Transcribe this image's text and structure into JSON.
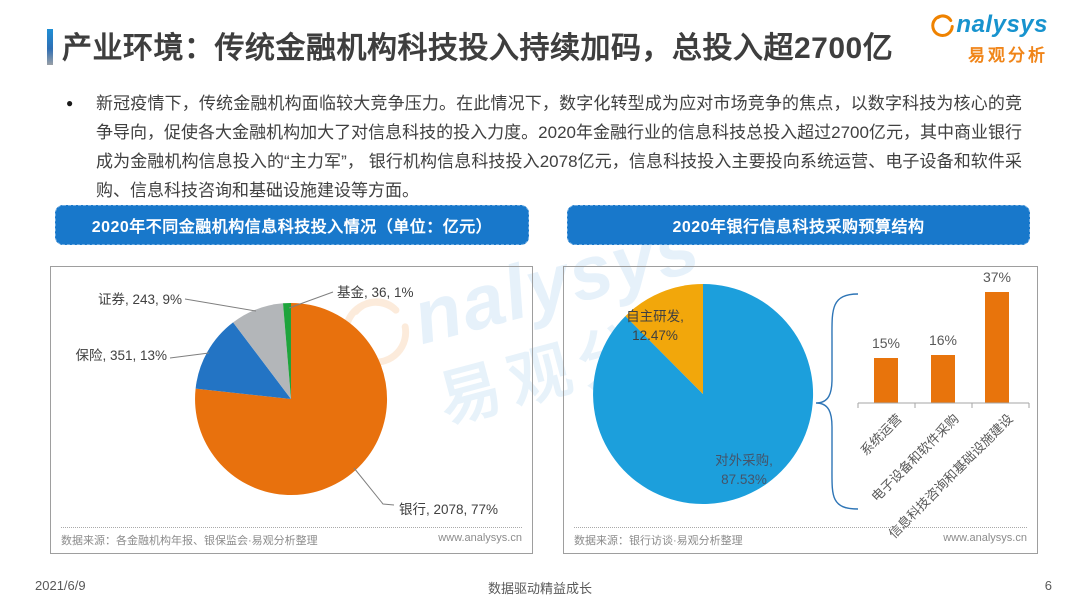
{
  "header": {
    "title": "产业环境：传统金融机构科技投入持续加码，总投入超2700亿",
    "logo_wordmark": "nalysys",
    "logo_cn": "易观分析"
  },
  "bullet": {
    "marker": "●",
    "text": "新冠疫情下，传统金融机构面临较大竞争压力。在此情况下，数字化转型成为应对市场竞争的焦点，以数字科技为核心的竞争导向，促使各大金融机构加大了对信息科技的投入力度。2020年金融行业的信息科技总投入超过2700亿元，其中商业银行成为金融机构信息投入的“主力军”， 银行机构信息科技投入2078亿元，信息科技投入主要投向系统运营、电子设备和软件采购、信息科技咨询和基础设施建设等方面。"
  },
  "left_panel": {
    "banner": "2020年不同金融机构信息科技投入情况（单位：亿元）",
    "callouts": {
      "securities": "证券, 243, 9%",
      "fund": "基金, 36, 1%",
      "insurance": "保险, 351, 13%",
      "bank": "银行, 2078, 77%"
    },
    "source": "数据来源：各金融机构年报、银保监会·易观分析整理",
    "site": "www.analysys.cn"
  },
  "right_panel": {
    "banner": "2020年银行信息科技采购预算结构",
    "pie_labels": {
      "inhouse_name": "自主研发,",
      "inhouse_value": "12.47%",
      "outsourced_name": "对外采购,",
      "outsourced_value": "87.53%"
    },
    "source": "数据来源：银行访谈·易观分析整理",
    "site": "www.analysys.cn"
  },
  "footer": {
    "date": "2021/6/9",
    "slogan": "数据驱动精益成长",
    "page": "6"
  },
  "watermark": {
    "wordmark": "nalysys",
    "cn": "易观分析"
  },
  "colors": {
    "banner_blue": "#1878cb",
    "bank_orange": "#e8710d",
    "insurance_blue": "#2374c4",
    "securities_gray": "#b3b6b9",
    "fund_green": "#1ea43c",
    "outsourced_blue": "#1c9fdc",
    "inhouse_yellow": "#f2a70b",
    "bar_orange": "#e8740c"
  },
  "chart_data": [
    {
      "type": "pie",
      "title": "2020年不同金融机构信息科技投入情况（单位：亿元）",
      "unit": "亿元",
      "labels": [
        "银行",
        "保险",
        "证券",
        "基金"
      ],
      "values": [
        2078,
        351,
        243,
        36
      ],
      "percents": [
        77,
        13,
        9,
        1
      ],
      "colors": [
        "#e8710d",
        "#2374c4",
        "#b3b6b9",
        "#1ea43c"
      ],
      "start_angle": "top, clockwise",
      "label_style": "external callouts: name, value, percent"
    },
    {
      "type": "pie",
      "title": "2020年银行信息科技采购预算结构",
      "labels": [
        "对外采购",
        "自主研发"
      ],
      "values": [
        87.53,
        12.47
      ],
      "unit": "%",
      "colors": [
        "#1c9fdc",
        "#f2a70b"
      ],
      "start_angle": "top, clockwise",
      "label_style": "internal labels: name, percent"
    },
    {
      "type": "bar",
      "categories": [
        "系统运营",
        "电子设备和软件采购",
        "信息科技咨询和基础设施建设"
      ],
      "values": [
        15,
        16,
        37
      ],
      "unit": "%",
      "value_labels": [
        "15%",
        "16%",
        "37%"
      ],
      "bar_color": "#e8740c",
      "ylim": [
        0,
        40
      ],
      "grid": false,
      "note": "linked to 对外采购 slice by brace"
    }
  ]
}
